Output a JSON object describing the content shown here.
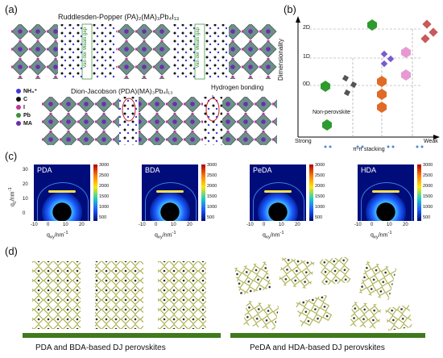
{
  "panels": {
    "a": {
      "label": "(a)",
      "rp_title": "Ruddlesden-Popper (PA)₂(MA)₃Pb₄I₁₃",
      "dj_title": "Dion-Jacobson (PDA)(MA)₃Pb₄I₁₃",
      "vdw_gap": "Van der Waals gap",
      "hbond": "Hydrogen bonding",
      "legend": [
        {
          "label": "NH₃⁺",
          "color": "#3b3bd6"
        },
        {
          "label": "C",
          "color": "#111111"
        },
        {
          "label": "I",
          "color": "#c2369b"
        },
        {
          "label": "Pb",
          "color": "#3e8f3e"
        },
        {
          "label": "MA",
          "color": "#6a2fb0"
        }
      ]
    },
    "b": {
      "label": "(b)",
      "y_axis": "Dimensionality",
      "x_axis": "π-π stacking",
      "x_left": "Strong",
      "x_right": "Weak",
      "levels": [
        "2D",
        "1D",
        "0D"
      ],
      "non_perovskite": "Non-perovskite"
    },
    "c": {
      "label": "(c)",
      "maps": [
        "PDA",
        "BDA",
        "PeDA",
        "HDA"
      ],
      "y_label": "q",
      "y_sub": "z",
      "y_unit": "/nm",
      "x_label": "q",
      "x_sub": "xy",
      "x_unit": "/nm",
      "unit_exp": "-1",
      "y_ticks": [
        "30",
        "20",
        "10",
        "0"
      ],
      "x_ticks": [
        "-10",
        "0",
        "10",
        "20"
      ],
      "colorbar_ticks": [
        "3000",
        "2500",
        "2000",
        "1500",
        "1000",
        "500"
      ]
    },
    "d": {
      "label": "(d)",
      "caption_left": "PDA and BDA-based DJ perovskites",
      "caption_right": "PeDA and HDA-based DJ perovskites"
    },
    "colors": {
      "pb_octahedron": "#6f8f8a",
      "iodide": "#c2369b",
      "ma": "#6a2fb0",
      "substrate": "#3f7a1c",
      "vdw": "#2a8a2a"
    }
  }
}
